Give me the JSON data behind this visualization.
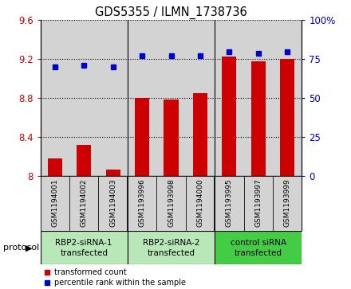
{
  "title": "GDS5355 / ILMN_1738736",
  "samples": [
    "GSM1194001",
    "GSM1194002",
    "GSM1194003",
    "GSM1193996",
    "GSM1193998",
    "GSM1194000",
    "GSM1193995",
    "GSM1193997",
    "GSM1193999"
  ],
  "transformed_counts": [
    8.18,
    8.32,
    8.07,
    8.8,
    8.79,
    8.85,
    9.23,
    9.18,
    9.2
  ],
  "percentile_ranks": [
    70,
    71,
    70,
    77,
    77,
    77,
    80,
    79,
    80
  ],
  "groups": [
    {
      "label": "RBP2-siRNA-1\ntransfected",
      "color": "#b8e8b8"
    },
    {
      "label": "RBP2-siRNA-2\ntransfected",
      "color": "#b8e8b8"
    },
    {
      "label": "control siRNA\ntransfected",
      "color": "#44cc44"
    }
  ],
  "ylim_left": [
    8.0,
    9.6
  ],
  "ylim_right": [
    0,
    100
  ],
  "yticks_left": [
    8.0,
    8.4,
    8.8,
    9.2,
    9.6
  ],
  "ytick_labels_left": [
    "8",
    "8.4",
    "8.8",
    "9.2",
    "9.6"
  ],
  "yticks_right": [
    0,
    25,
    50,
    75,
    100
  ],
  "ytick_labels_right": [
    "0",
    "25",
    "50",
    "75",
    "100%"
  ],
  "bar_color": "#cc0000",
  "dot_color": "#0000cc",
  "bar_width": 0.5,
  "bg_color": "#d3d3d3",
  "left_tick_color": "#cc0000",
  "right_tick_color": "#0000cc",
  "protocol_label": "protocol"
}
